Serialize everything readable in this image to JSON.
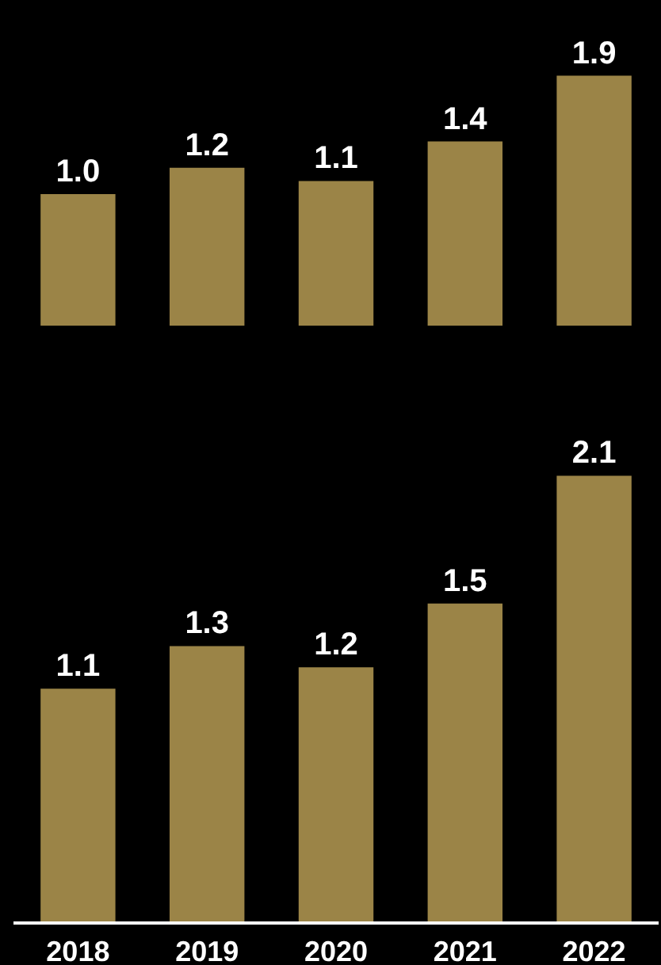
{
  "chart_data": [
    {
      "type": "bar",
      "categories": [
        "2018",
        "2019",
        "2020",
        "2021",
        "2022"
      ],
      "values": [
        1.0,
        1.2,
        1.1,
        1.4,
        1.9
      ],
      "value_labels": [
        "1.0",
        "1.2",
        "1.1",
        "1.4",
        "1.9"
      ],
      "color": "#9b8447",
      "tick_labels": false
    },
    {
      "type": "bar",
      "categories": [
        "2018",
        "2019",
        "2020",
        "2021",
        "2022"
      ],
      "values": [
        1.1,
        1.3,
        1.2,
        1.5,
        2.1
      ],
      "value_labels": [
        "1.1",
        "1.3",
        "1.2",
        "1.5",
        "2.1"
      ],
      "color": "#9b8447",
      "tick_labels": "x"
    }
  ]
}
